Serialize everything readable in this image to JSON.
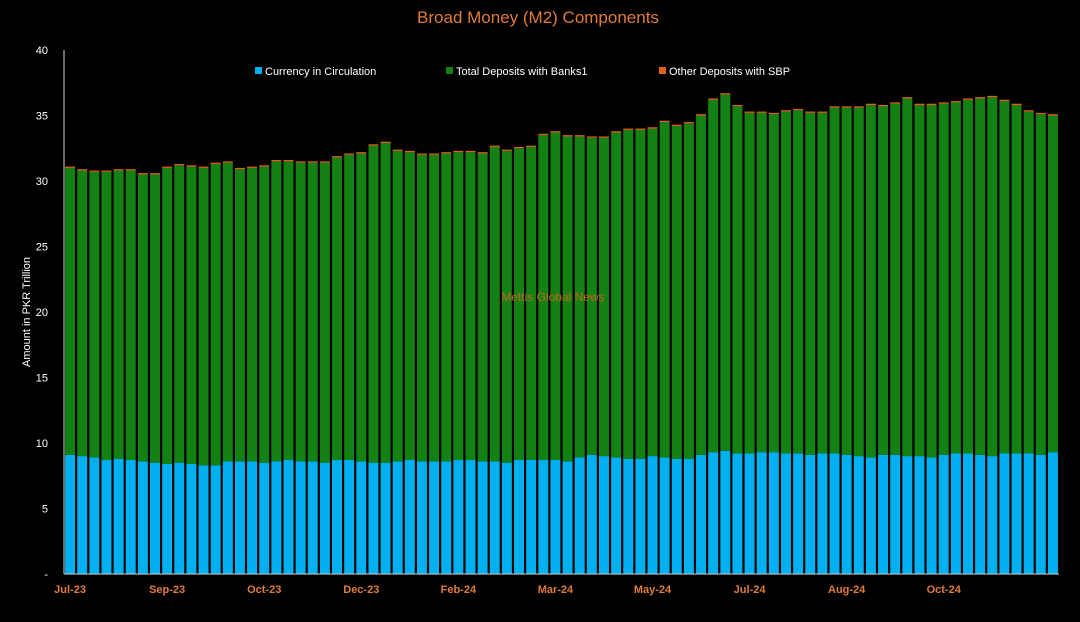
{
  "chart_data": {
    "type": "bar",
    "stacked": true,
    "title": "Broad Money (M2) Components",
    "xlabel": "",
    "ylabel": "Amount in PKR Trillion",
    "ylim": [
      0,
      40
    ],
    "yticks": [
      "-",
      "5",
      "10",
      "15",
      "20",
      "25",
      "30",
      "35",
      "40"
    ],
    "grid": false,
    "legend_position": "top-center",
    "watermark": "Mettis Global News",
    "x_tick_labels": [
      {
        "label": "Jul-23",
        "index": 0
      },
      {
        "label": "Sep-23",
        "index": 8
      },
      {
        "label": "Oct-23",
        "index": 16
      },
      {
        "label": "Dec-23",
        "index": 24
      },
      {
        "label": "Feb-24",
        "index": 32
      },
      {
        "label": "Mar-24",
        "index": 40
      },
      {
        "label": "May-24",
        "index": 48
      },
      {
        "label": "Jul-24",
        "index": 56
      },
      {
        "label": "Aug-24",
        "index": 64
      },
      {
        "label": "Oct-24",
        "index": 72
      }
    ],
    "colors": {
      "background": "#000000",
      "axis": "#d9d9d9",
      "title": "#e07b39",
      "tick_x": "#e07b39",
      "tick_y": "#ffffff",
      "watermark": "#c0661f"
    },
    "series": [
      {
        "name": "Currency in Circulation",
        "color": "#00b0f0",
        "values": [
          9.1,
          9.0,
          8.9,
          8.7,
          8.8,
          8.7,
          8.6,
          8.5,
          8.4,
          8.5,
          8.4,
          8.3,
          8.3,
          8.6,
          8.6,
          8.6,
          8.5,
          8.6,
          8.7,
          8.6,
          8.6,
          8.5,
          8.7,
          8.7,
          8.6,
          8.5,
          8.5,
          8.6,
          8.7,
          8.6,
          8.6,
          8.6,
          8.7,
          8.7,
          8.6,
          8.6,
          8.5,
          8.7,
          8.7,
          8.7,
          8.7,
          8.6,
          8.9,
          9.1,
          9.0,
          8.9,
          8.8,
          8.8,
          9.0,
          8.9,
          8.8,
          8.8,
          9.1,
          9.3,
          9.4,
          9.2,
          9.2,
          9.3,
          9.3,
          9.2,
          9.2,
          9.1,
          9.2,
          9.2,
          9.1,
          9.0,
          8.9,
          9.1,
          9.1,
          9.0,
          9.0,
          8.9,
          9.1,
          9.2,
          9.2,
          9.1,
          9.0,
          9.2,
          9.2,
          9.2,
          9.1,
          9.3
        ]
      },
      {
        "name": "Total Deposits with Banks1",
        "color": "#138113",
        "values": [
          21.9,
          21.8,
          21.8,
          22.0,
          22.0,
          22.1,
          21.9,
          22.0,
          22.6,
          22.7,
          22.7,
          22.7,
          23.0,
          22.8,
          22.3,
          22.4,
          22.6,
          22.9,
          22.8,
          22.8,
          22.8,
          22.9,
          23.1,
          23.3,
          23.5,
          24.2,
          24.4,
          23.7,
          23.5,
          23.4,
          23.4,
          23.5,
          23.5,
          23.5,
          23.5,
          24.0,
          23.8,
          23.8,
          23.9,
          24.8,
          25.0,
          24.8,
          24.5,
          24.2,
          24.3,
          24.8,
          25.1,
          25.1,
          25.0,
          25.6,
          25.4,
          25.6,
          25.9,
          26.9,
          27.2,
          26.5,
          26.0,
          25.9,
          25.8,
          26.1,
          26.2,
          26.1,
          26.0,
          26.4,
          26.5,
          26.6,
          26.9,
          26.6,
          26.8,
          27.3,
          26.8,
          26.9,
          26.8,
          26.8,
          27.0,
          27.2,
          27.4,
          26.9,
          26.6,
          26.1,
          26.0,
          25.7
        ]
      },
      {
        "name": "Other Deposits with SBP",
        "color": "#e0611c",
        "values": [
          0.1,
          0.1,
          0.1,
          0.1,
          0.1,
          0.1,
          0.1,
          0.1,
          0.1,
          0.1,
          0.1,
          0.1,
          0.1,
          0.1,
          0.1,
          0.1,
          0.1,
          0.1,
          0.1,
          0.1,
          0.1,
          0.1,
          0.1,
          0.1,
          0.1,
          0.1,
          0.1,
          0.1,
          0.1,
          0.1,
          0.1,
          0.1,
          0.1,
          0.1,
          0.1,
          0.1,
          0.1,
          0.1,
          0.1,
          0.1,
          0.1,
          0.1,
          0.1,
          0.1,
          0.1,
          0.1,
          0.1,
          0.1,
          0.1,
          0.1,
          0.1,
          0.1,
          0.1,
          0.1,
          0.1,
          0.1,
          0.1,
          0.1,
          0.1,
          0.1,
          0.1,
          0.1,
          0.1,
          0.1,
          0.1,
          0.1,
          0.1,
          0.1,
          0.1,
          0.1,
          0.1,
          0.1,
          0.1,
          0.1,
          0.1,
          0.1,
          0.1,
          0.1,
          0.1,
          0.1,
          0.1,
          0.1
        ]
      }
    ]
  }
}
